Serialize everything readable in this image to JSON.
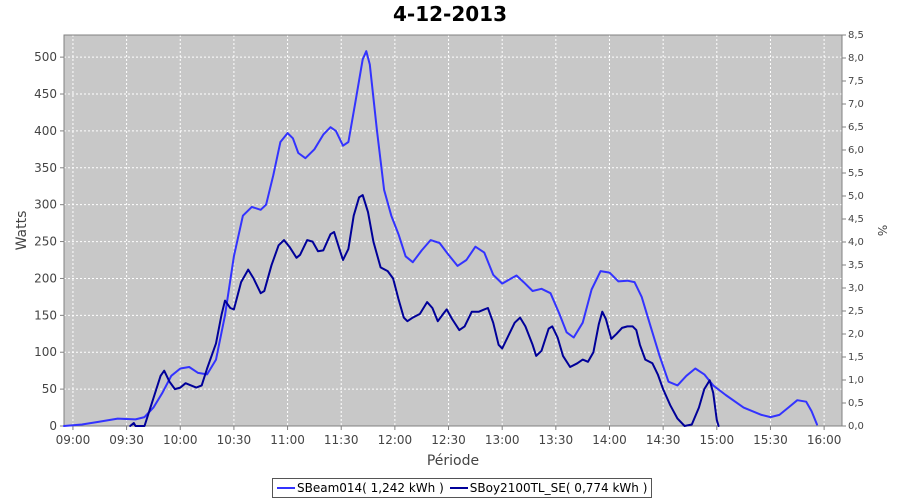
{
  "chart_data": {
    "type": "line",
    "title": "4-12-2013",
    "xlabel": "Période",
    "ylabel": "Watts",
    "y2label": "%",
    "ylim": [
      0,
      530
    ],
    "y2lim": [
      0,
      8.5
    ],
    "grid": true,
    "legend_position": "bottom",
    "x_ticks": [
      "09:00",
      "09:30",
      "10:00",
      "10:30",
      "11:00",
      "11:30",
      "12:00",
      "12:30",
      "13:00",
      "13:30",
      "14:00",
      "14:30",
      "15:00",
      "15:30",
      "16:00"
    ],
    "y_ticks": [
      0,
      50,
      100,
      150,
      200,
      250,
      300,
      350,
      400,
      450,
      500
    ],
    "y2_ticks": [
      "0,0",
      "0,5",
      "1,0",
      "1,5",
      "2,0",
      "2,5",
      "3,0",
      "3,5",
      "4,0",
      "4,5",
      "5,0",
      "5,5",
      "6,0",
      "6,5",
      "7,0",
      "7,5",
      "8,0",
      "8,5"
    ],
    "series": [
      {
        "name": "SBeam014( 1,242 kWh )",
        "color": "#3333ff",
        "points": [
          [
            "08:55",
            0
          ],
          [
            "09:05",
            2
          ],
          [
            "09:15",
            6
          ],
          [
            "09:25",
            10
          ],
          [
            "09:35",
            9
          ],
          [
            "09:40",
            12
          ],
          [
            "09:45",
            25
          ],
          [
            "09:50",
            45
          ],
          [
            "09:55",
            68
          ],
          [
            "10:00",
            78
          ],
          [
            "10:05",
            80
          ],
          [
            "10:10",
            72
          ],
          [
            "10:15",
            70
          ],
          [
            "10:20",
            90
          ],
          [
            "10:25",
            150
          ],
          [
            "10:30",
            230
          ],
          [
            "10:35",
            285
          ],
          [
            "10:40",
            297
          ],
          [
            "10:45",
            293
          ],
          [
            "10:48",
            300
          ],
          [
            "10:52",
            340
          ],
          [
            "10:56",
            385
          ],
          [
            "11:00",
            397
          ],
          [
            "11:03",
            390
          ],
          [
            "11:06",
            370
          ],
          [
            "11:10",
            363
          ],
          [
            "11:15",
            375
          ],
          [
            "11:20",
            395
          ],
          [
            "11:24",
            405
          ],
          [
            "11:27",
            400
          ],
          [
            "11:31",
            380
          ],
          [
            "11:34",
            385
          ],
          [
            "11:38",
            440
          ],
          [
            "11:42",
            497
          ],
          [
            "11:44",
            508
          ],
          [
            "11:46",
            490
          ],
          [
            "11:50",
            400
          ],
          [
            "11:54",
            320
          ],
          [
            "11:58",
            285
          ],
          [
            "12:02",
            260
          ],
          [
            "12:06",
            230
          ],
          [
            "12:10",
            222
          ],
          [
            "12:15",
            238
          ],
          [
            "12:20",
            252
          ],
          [
            "12:25",
            248
          ],
          [
            "12:30",
            232
          ],
          [
            "12:35",
            217
          ],
          [
            "12:40",
            225
          ],
          [
            "12:45",
            243
          ],
          [
            "12:50",
            235
          ],
          [
            "12:55",
            205
          ],
          [
            "13:00",
            193
          ],
          [
            "13:05",
            200
          ],
          [
            "13:08",
            204
          ],
          [
            "13:12",
            195
          ],
          [
            "13:17",
            183
          ],
          [
            "13:22",
            186
          ],
          [
            "13:27",
            180
          ],
          [
            "13:32",
            152
          ],
          [
            "13:36",
            127
          ],
          [
            "13:40",
            120
          ],
          [
            "13:45",
            140
          ],
          [
            "13:50",
            185
          ],
          [
            "13:55",
            210
          ],
          [
            "14:00",
            208
          ],
          [
            "14:05",
            196
          ],
          [
            "14:10",
            197
          ],
          [
            "14:14",
            195
          ],
          [
            "14:18",
            175
          ],
          [
            "14:23",
            135
          ],
          [
            "14:28",
            95
          ],
          [
            "14:33",
            60
          ],
          [
            "14:38",
            55
          ],
          [
            "14:43",
            68
          ],
          [
            "14:48",
            78
          ],
          [
            "14:53",
            70
          ],
          [
            "14:58",
            55
          ],
          [
            "15:05",
            42
          ],
          [
            "15:15",
            25
          ],
          [
            "15:25",
            15
          ],
          [
            "15:30",
            12
          ],
          [
            "15:35",
            15
          ],
          [
            "15:40",
            25
          ],
          [
            "15:45",
            35
          ],
          [
            "15:50",
            33
          ],
          [
            "15:53",
            20
          ],
          [
            "15:56",
            2
          ]
        ]
      },
      {
        "name": "SBoy2100TL_SE( 0,774 kWh )",
        "color": "#000099",
        "points": [
          [
            "09:32",
            0
          ],
          [
            "09:34",
            4
          ],
          [
            "09:35",
            0
          ],
          [
            "09:40",
            0
          ],
          [
            "09:44",
            30
          ],
          [
            "09:49",
            68
          ],
          [
            "09:51",
            75
          ],
          [
            "09:54",
            60
          ],
          [
            "09:57",
            50
          ],
          [
            "10:00",
            52
          ],
          [
            "10:03",
            58
          ],
          [
            "10:06",
            55
          ],
          [
            "10:09",
            52
          ],
          [
            "10:12",
            55
          ],
          [
            "10:15",
            78
          ],
          [
            "10:20",
            112
          ],
          [
            "10:23",
            150
          ],
          [
            "10:25",
            170
          ],
          [
            "10:28",
            160
          ],
          [
            "10:30",
            158
          ],
          [
            "10:34",
            195
          ],
          [
            "10:38",
            212
          ],
          [
            "10:41",
            200
          ],
          [
            "10:45",
            180
          ],
          [
            "10:47",
            183
          ],
          [
            "10:51",
            218
          ],
          [
            "10:55",
            245
          ],
          [
            "10:58",
            252
          ],
          [
            "11:01",
            243
          ],
          [
            "11:05",
            228
          ],
          [
            "11:07",
            232
          ],
          [
            "11:11",
            252
          ],
          [
            "11:14",
            250
          ],
          [
            "11:17",
            237
          ],
          [
            "11:20",
            238
          ],
          [
            "11:24",
            260
          ],
          [
            "11:26",
            263
          ],
          [
            "11:29",
            240
          ],
          [
            "11:31",
            225
          ],
          [
            "11:34",
            240
          ],
          [
            "11:37",
            285
          ],
          [
            "11:40",
            310
          ],
          [
            "11:42",
            313
          ],
          [
            "11:45",
            290
          ],
          [
            "11:48",
            250
          ],
          [
            "11:52",
            215
          ],
          [
            "11:56",
            210
          ],
          [
            "11:59",
            200
          ],
          [
            "12:02",
            172
          ],
          [
            "12:05",
            147
          ],
          [
            "12:07",
            142
          ],
          [
            "12:10",
            147
          ],
          [
            "12:14",
            152
          ],
          [
            "12:18",
            168
          ],
          [
            "12:21",
            160
          ],
          [
            "12:24",
            142
          ],
          [
            "12:27",
            152
          ],
          [
            "12:29",
            158
          ],
          [
            "12:32",
            145
          ],
          [
            "12:36",
            130
          ],
          [
            "12:39",
            135
          ],
          [
            "12:43",
            155
          ],
          [
            "12:47",
            155
          ],
          [
            "12:50",
            158
          ],
          [
            "12:52",
            160
          ],
          [
            "12:55",
            140
          ],
          [
            "12:58",
            110
          ],
          [
            "13:00",
            105
          ],
          [
            "13:04",
            125
          ],
          [
            "13:07",
            140
          ],
          [
            "13:10",
            147
          ],
          [
            "13:13",
            135
          ],
          [
            "13:17",
            110
          ],
          [
            "13:19",
            95
          ],
          [
            "13:22",
            102
          ],
          [
            "13:26",
            132
          ],
          [
            "13:28",
            135
          ],
          [
            "13:31",
            120
          ],
          [
            "13:34",
            95
          ],
          [
            "13:38",
            80
          ],
          [
            "13:42",
            85
          ],
          [
            "13:45",
            90
          ],
          [
            "13:48",
            87
          ],
          [
            "13:51",
            100
          ],
          [
            "13:54",
            138
          ],
          [
            "13:56",
            155
          ],
          [
            "13:58",
            145
          ],
          [
            "14:01",
            118
          ],
          [
            "14:04",
            125
          ],
          [
            "14:07",
            133
          ],
          [
            "14:10",
            135
          ],
          [
            "14:13",
            135
          ],
          [
            "14:15",
            130
          ],
          [
            "14:17",
            110
          ],
          [
            "14:20",
            90
          ],
          [
            "14:24",
            85
          ],
          [
            "14:27",
            70
          ],
          [
            "14:30",
            50
          ],
          [
            "14:34",
            28
          ],
          [
            "14:38",
            10
          ],
          [
            "14:42",
            0
          ],
          [
            "14:46",
            2
          ],
          [
            "14:50",
            25
          ],
          [
            "14:53",
            50
          ],
          [
            "14:56",
            62
          ],
          [
            "14:58",
            45
          ],
          [
            "15:00",
            8
          ],
          [
            "15:01",
            0
          ]
        ]
      }
    ]
  }
}
